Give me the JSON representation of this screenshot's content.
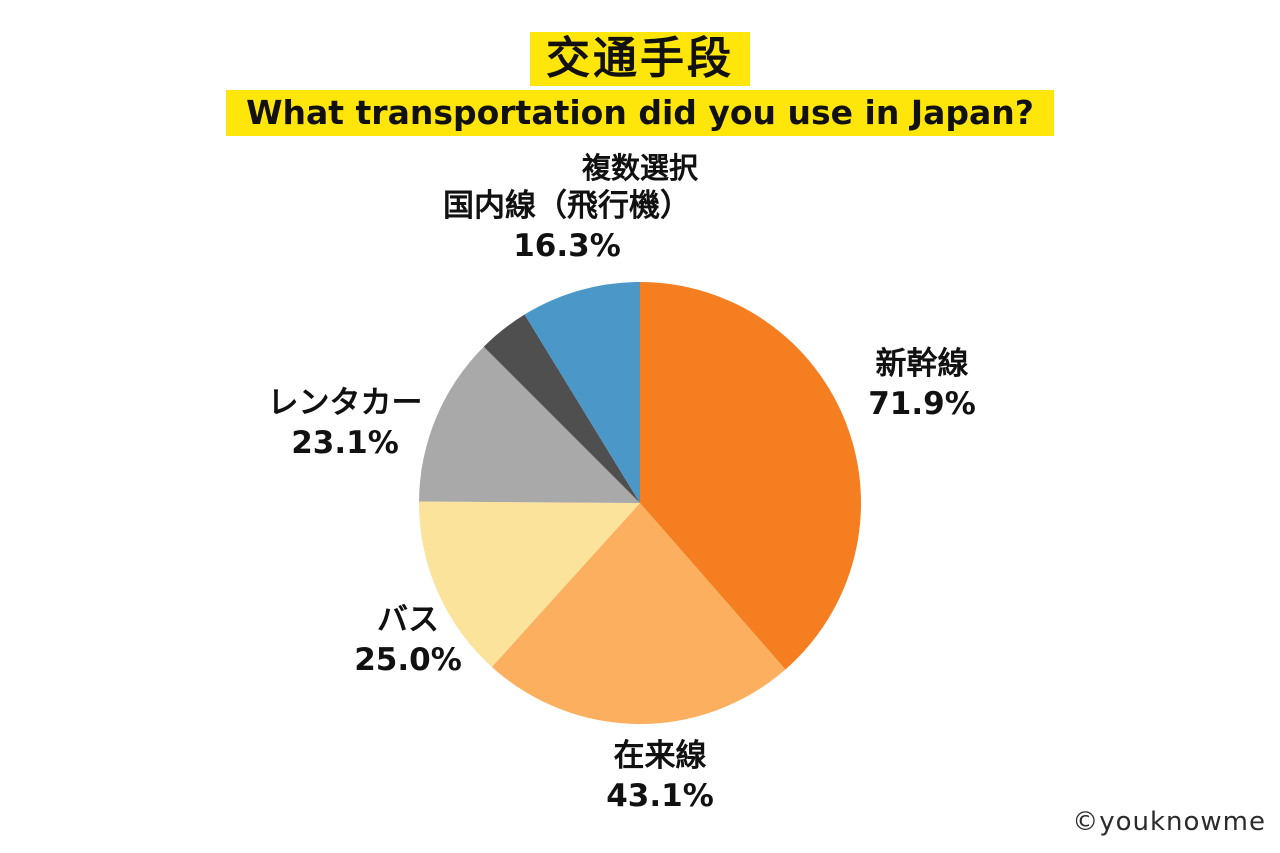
{
  "chart_data": {
    "type": "pie",
    "title": "交通手段",
    "subtitle": "What transportation did you use in Japan?",
    "note": "複数選択",
    "start_angle_deg": -90,
    "direction": "clockwise",
    "legend_position": "outside-labels",
    "segments": [
      {
        "id": "shinkansen",
        "label": "新幹線",
        "pct": "71.9%",
        "value": 71.9,
        "color": "#F57E20"
      },
      {
        "id": "local-line",
        "label": "在来線",
        "pct": "43.1%",
        "value": 43.1,
        "color": "#FBAF5F"
      },
      {
        "id": "bus",
        "label": "バス",
        "pct": "25.0%",
        "value": 25.0,
        "color": "#FCE39C"
      },
      {
        "id": "rent-a-car",
        "label": "レンタカー",
        "pct": "23.1%",
        "value": 23.1,
        "color": "#A9A9A9"
      },
      {
        "id": "unlabeled-other",
        "label": "",
        "pct": "",
        "value": 7.0,
        "color": "#4F4F4F"
      },
      {
        "id": "domestic-flight",
        "label": "国内線（飛行機）",
        "pct": "16.3%",
        "value": 16.3,
        "color": "#4B97C8"
      }
    ]
  },
  "colors": {
    "highlight": "#FFE60A",
    "text": "#111111",
    "background": "#FFFFFF"
  },
  "footer": {
    "credit": "©youknowme"
  }
}
